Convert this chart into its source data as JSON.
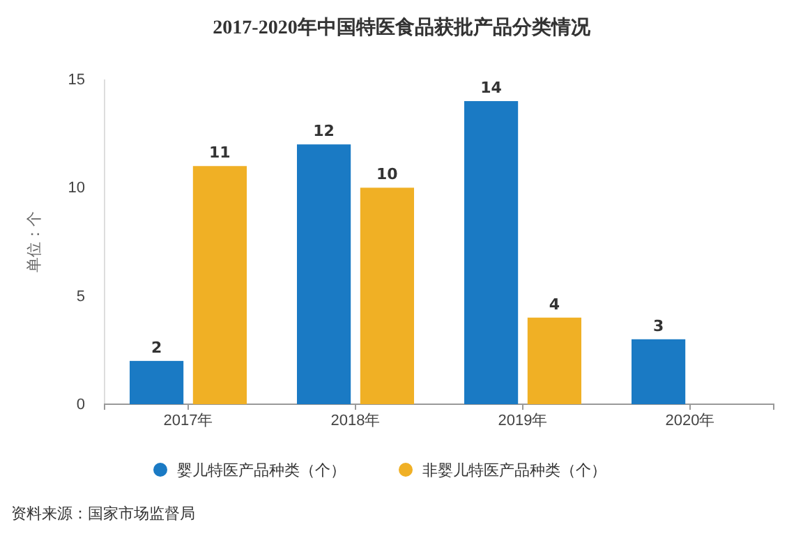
{
  "chart_data": {
    "type": "bar",
    "title": "2017-2020年中国特医食品获批产品分类情况",
    "ylabel": "单位：个",
    "categories": [
      "2017年",
      "2018年",
      "2019年",
      "2020年"
    ],
    "series": [
      {
        "name": "婴儿特医产品种类（个）",
        "color": "#1a7ac4",
        "values": [
          2,
          12,
          14,
          3
        ]
      },
      {
        "name": "非婴儿特医产品种类（个）",
        "color": "#f0b025",
        "values": [
          11,
          10,
          4,
          null
        ]
      }
    ],
    "ylim": [
      0,
      15
    ],
    "yticks": [
      0,
      5,
      10,
      15
    ],
    "grid": false,
    "legend": "bottom",
    "data_labels": true,
    "annotations": [
      "资料来源：国家市场监督局"
    ]
  }
}
